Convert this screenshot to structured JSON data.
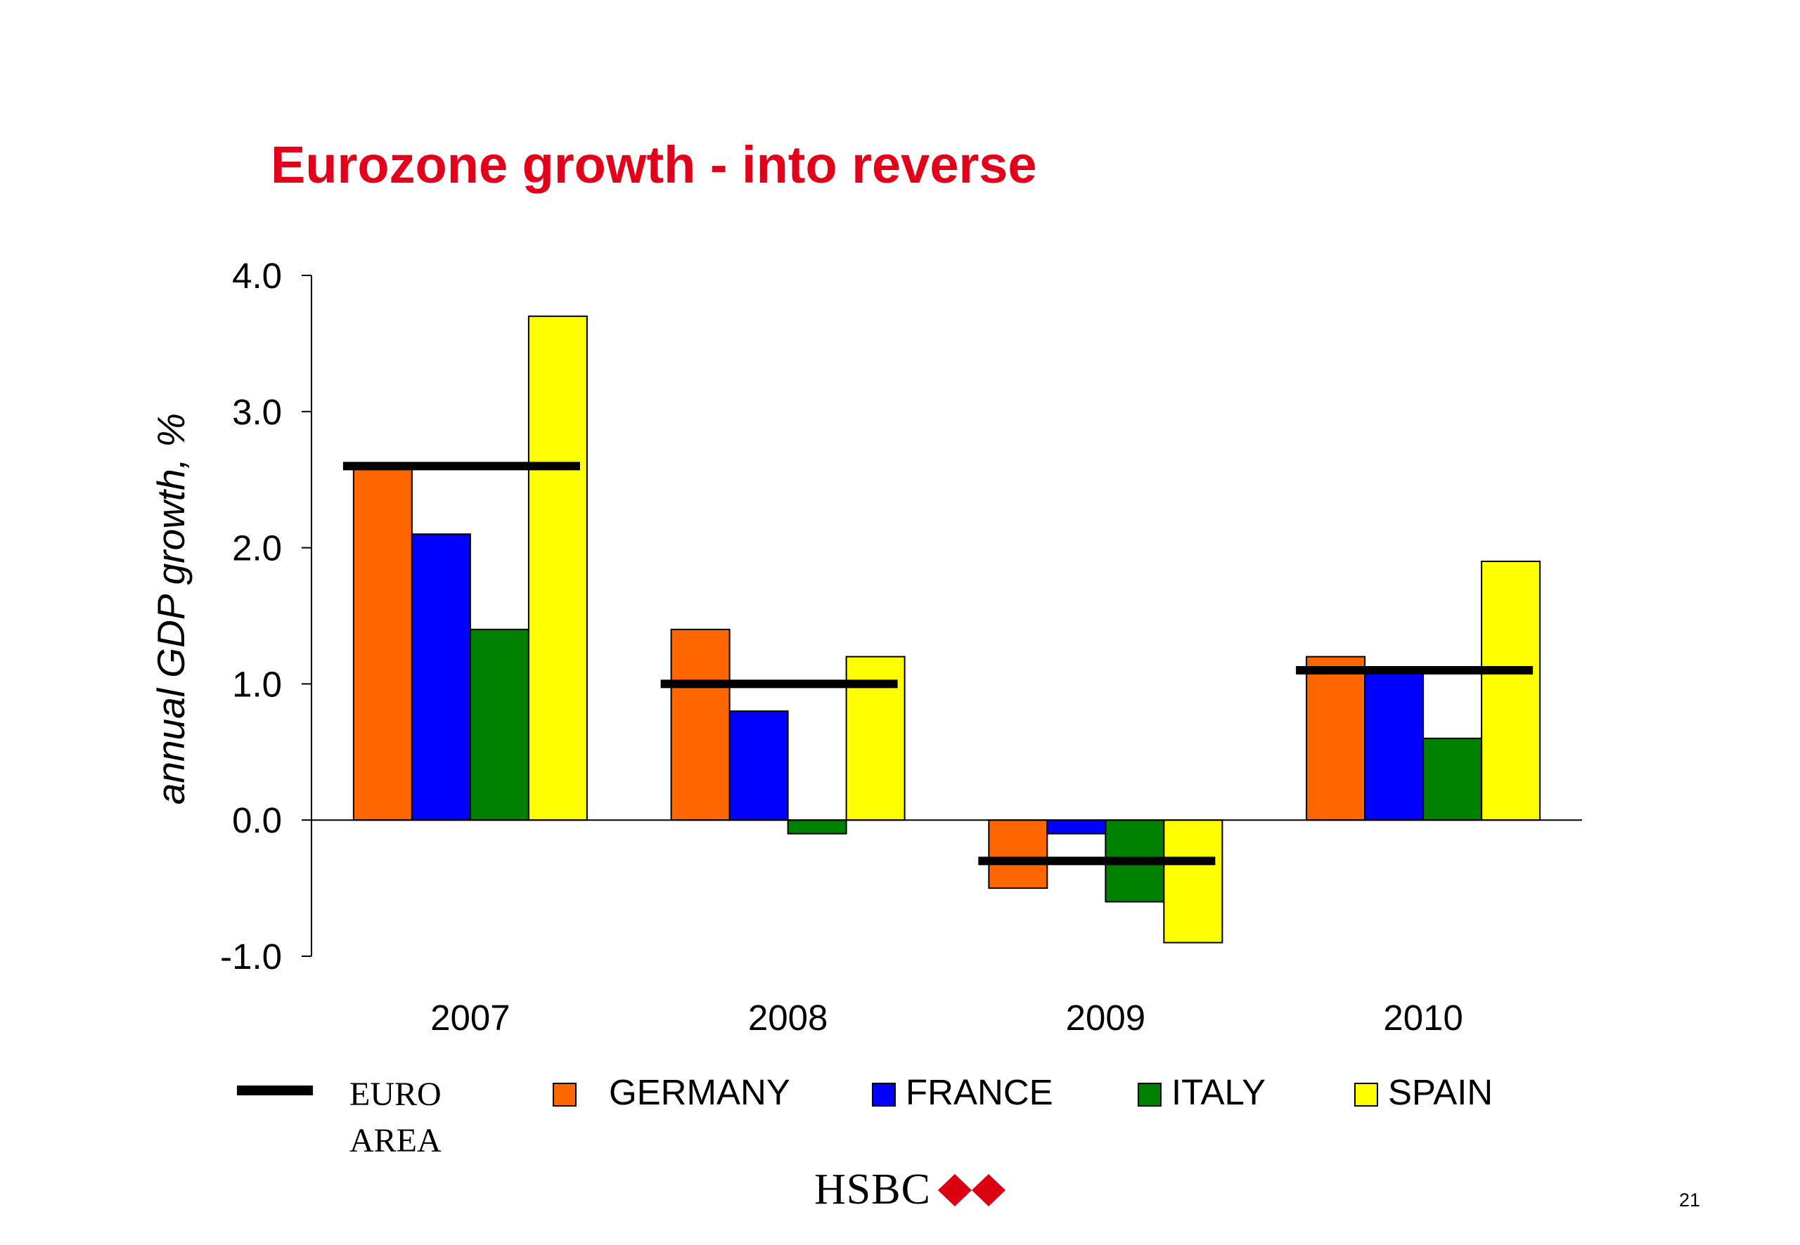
{
  "slide": {
    "title": "Eurozone growth - into reverse",
    "logo_text": "HSBC",
    "page_number": "21"
  },
  "colors": {
    "title": "#e3001b",
    "germany": "#ff6600",
    "france": "#0000ff",
    "italy": "#008000",
    "spain": "#ffff00",
    "euro_area": "#000000"
  },
  "chart_data": {
    "type": "bar",
    "title": "",
    "xlabel": "",
    "ylabel": "annual GDP growth, %",
    "categories": [
      "2007",
      "2008",
      "2009",
      "2010"
    ],
    "ylim": [
      -1.0,
      4.0
    ],
    "yticks": [
      4.0,
      3.0,
      2.0,
      1.0,
      0.0,
      -1.0
    ],
    "ytick_labels": [
      "4.0",
      "3.0",
      "2.0",
      "1.0",
      "0.0",
      "-1.0"
    ],
    "grid": false,
    "legend_position": "bottom",
    "series": [
      {
        "name": "GERMANY",
        "color": "#ff6600",
        "values": [
          2.6,
          1.4,
          -0.5,
          1.2
        ]
      },
      {
        "name": "FRANCE",
        "color": "#0000ff",
        "values": [
          2.1,
          0.8,
          -0.1,
          1.1
        ]
      },
      {
        "name": "ITALY",
        "color": "#008000",
        "values": [
          1.4,
          -0.1,
          -0.6,
          0.6
        ]
      },
      {
        "name": "SPAIN",
        "color": "#ffff00",
        "values": [
          3.7,
          1.2,
          -0.9,
          1.9
        ]
      }
    ],
    "overlay_line": {
      "name": "EURO AREA",
      "color": "#000000",
      "values": [
        2.6,
        1.0,
        -0.3,
        1.1
      ]
    }
  },
  "legend": {
    "euro_area_line1": "EURO",
    "euro_area_line2": "AREA",
    "germany": "GERMANY",
    "france": "FRANCE",
    "italy": "ITALY",
    "spain": "SPAIN"
  }
}
